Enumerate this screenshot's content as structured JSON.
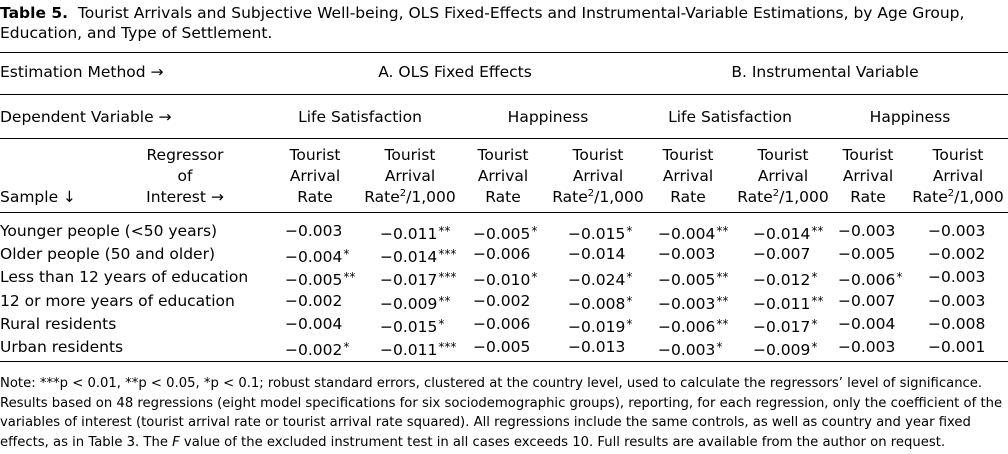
{
  "caption": {
    "label": "Table 5.",
    "text": "Tourist Arrivals and Subjective Well-being, OLS Fixed-Effects and Instrumental-Variable Estimations, by Age Group, Education, and Type of Settlement."
  },
  "header": {
    "estimation_method": "Estimation Method →",
    "method_a": "A. OLS Fixed Effects",
    "method_b": "B. Instrumental Variable",
    "dependent_variable": "Dependent Variable →",
    "life_satisfaction": "Life Satisfaction",
    "happiness": "Happiness",
    "regressor_line1": "Regressor",
    "regressor_line2": "of",
    "regressor_line3": "Interest →",
    "sample": "Sample ↓",
    "rate_line1": "Tourist",
    "rate_line2": "Arrival",
    "rate_line3": "Rate",
    "sq_line1": "Tourist",
    "sq_line2": "Arrival",
    "sq_line3_pre": "Rate",
    "sq_line3_sup": "2",
    "sq_line3_post": "/1,000"
  },
  "rows": [
    {
      "label": "Younger people (<50 years)",
      "cells": [
        [
          "−0.003",
          ""
        ],
        [
          "−0.011",
          "**"
        ],
        [
          "−0.005",
          "*"
        ],
        [
          "−0.015",
          "*"
        ],
        [
          "−0.004",
          "**"
        ],
        [
          "−0.014",
          "**"
        ],
        [
          "−0.003",
          ""
        ],
        [
          "−0.003",
          ""
        ]
      ]
    },
    {
      "label": "Older people (50 and older)",
      "cells": [
        [
          "−0.004",
          "*"
        ],
        [
          "−0.014",
          "***"
        ],
        [
          "−0.006",
          ""
        ],
        [
          "−0.014",
          ""
        ],
        [
          "−0.003",
          ""
        ],
        [
          "−0.007",
          ""
        ],
        [
          "−0.005",
          ""
        ],
        [
          "−0.002",
          ""
        ]
      ]
    },
    {
      "label": "Less than 12 years of education",
      "cells": [
        [
          "−0.005",
          "**"
        ],
        [
          "−0.017",
          "***"
        ],
        [
          "−0.010",
          "*"
        ],
        [
          "−0.024",
          "*"
        ],
        [
          "−0.005",
          "**"
        ],
        [
          "−0.012",
          "*"
        ],
        [
          "−0.006",
          "*"
        ],
        [
          "−0.003",
          ""
        ]
      ]
    },
    {
      "label": "12 or more years of education",
      "cells": [
        [
          "−0.002",
          ""
        ],
        [
          "−0.009",
          "**"
        ],
        [
          "−0.002",
          ""
        ],
        [
          "−0.008",
          "*"
        ],
        [
          "−0.003",
          "**"
        ],
        [
          "−0.011",
          "**"
        ],
        [
          "−0.007",
          ""
        ],
        [
          "−0.003",
          ""
        ]
      ]
    },
    {
      "label": "Rural residents",
      "cells": [
        [
          "−0.004",
          ""
        ],
        [
          "−0.015",
          "*"
        ],
        [
          "−0.006",
          ""
        ],
        [
          "−0.019",
          "*"
        ],
        [
          "−0.006",
          "**"
        ],
        [
          "−0.017",
          "*"
        ],
        [
          "−0.004",
          ""
        ],
        [
          "−0.008",
          ""
        ]
      ]
    },
    {
      "label": "Urban residents",
      "cells": [
        [
          "−0.002",
          "*"
        ],
        [
          "−0.011",
          "***"
        ],
        [
          "−0.005",
          ""
        ],
        [
          "−0.013",
          ""
        ],
        [
          "−0.003",
          "*"
        ],
        [
          "−0.009",
          "*"
        ],
        [
          "−0.003",
          ""
        ],
        [
          "−0.001",
          ""
        ]
      ]
    }
  ],
  "note": {
    "part1": "Note: ***p < 0.01, **p < 0.05, *p < 0.1; robust standard errors, clustered at the country level, used to calculate the regressors’ level of significance. Results based on 48 regressions (eight model specifications for six sociodemographic groups), reporting, for each regression, only the coefficient of the variables of interest (tourist arrival rate or tourist arrival rate squared). All regressions include the same controls, as well as country and year fixed effects, as in Table 3. The ",
    "italic": "F",
    "part2": " value of the excluded instrument test in all cases exceeds 10. Full results are available from the author on request."
  }
}
